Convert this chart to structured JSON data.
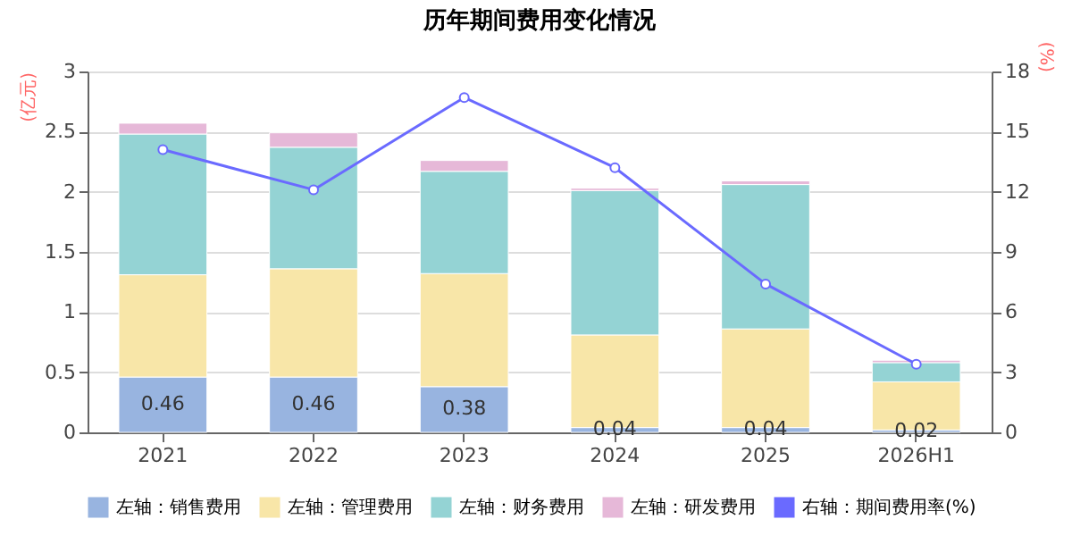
{
  "chart_data": {
    "type": "bar",
    "title": "历年期间费用变化情况",
    "stacked": true,
    "categories": [
      "2021",
      "2022",
      "2023",
      "2024",
      "2025",
      "2026H1"
    ],
    "ylabel": "(亿元)",
    "y2label": "(%)",
    "ylim": [
      0,
      3
    ],
    "yticks": [
      0,
      0.5,
      1,
      1.5,
      2,
      2.5,
      3
    ],
    "y2lim": [
      0,
      18
    ],
    "y2ticks": [
      0,
      3,
      6,
      9,
      12,
      15,
      18
    ],
    "grid": "y",
    "legend": "bottom",
    "series": [
      {
        "name": "左轴：销售费用",
        "color": "#98b4e0",
        "values": [
          0.46,
          0.46,
          0.38,
          0.04,
          0.04,
          0.02
        ],
        "value_labels": [
          "0.46",
          "0.46",
          "0.38",
          "0.04",
          "0.04",
          "0.02"
        ]
      },
      {
        "name": "左轴：管理费用",
        "color": "#f8e6a8",
        "values": [
          0.85,
          0.9,
          0.94,
          0.77,
          0.82,
          0.4
        ]
      },
      {
        "name": "左轴：财务费用",
        "color": "#94d3d4",
        "values": [
          1.17,
          1.01,
          0.85,
          1.2,
          1.2,
          0.16
        ]
      },
      {
        "name": "左轴：研发费用",
        "color": "#e6b8d8",
        "values": [
          0.09,
          0.12,
          0.09,
          0.02,
          0.03,
          0.02
        ]
      },
      {
        "name": "右轴：期间费用率(%)",
        "color": "#6a6aff",
        "type": "line",
        "axis": "y2",
        "marker": "circle",
        "values": [
          14.1,
          12.1,
          16.7,
          13.2,
          7.4,
          3.4
        ]
      }
    ]
  }
}
